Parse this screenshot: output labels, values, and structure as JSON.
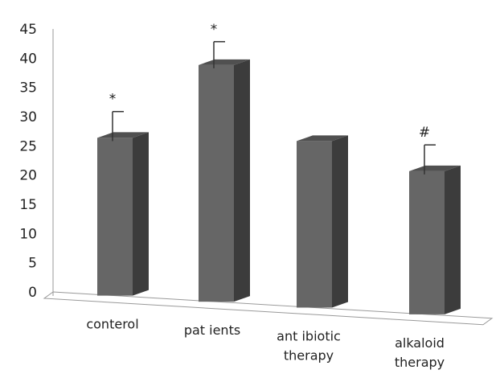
{
  "chart_data": {
    "type": "bar",
    "title": "",
    "xlabel": "",
    "ylabel": "",
    "ylim": [
      0,
      45
    ],
    "yticks": [
      0,
      5,
      10,
      15,
      20,
      25,
      30,
      35,
      40,
      45
    ],
    "grid": false,
    "bar_color": "#666666",
    "categories": [
      {
        "lines": [
          "conterol"
        ]
      },
      {
        "lines": [
          "pat ients"
        ]
      },
      {
        "lines": [
          "ant ibiotic",
          "therapy"
        ]
      },
      {
        "lines": [
          "alkaloid",
          "therapy"
        ]
      }
    ],
    "values": [
      27,
      40.5,
      28.5,
      24.5
    ],
    "error_top": [
      31.5,
      44.5,
      null,
      29
    ],
    "markers": [
      "*",
      "*",
      "",
      "#"
    ]
  }
}
